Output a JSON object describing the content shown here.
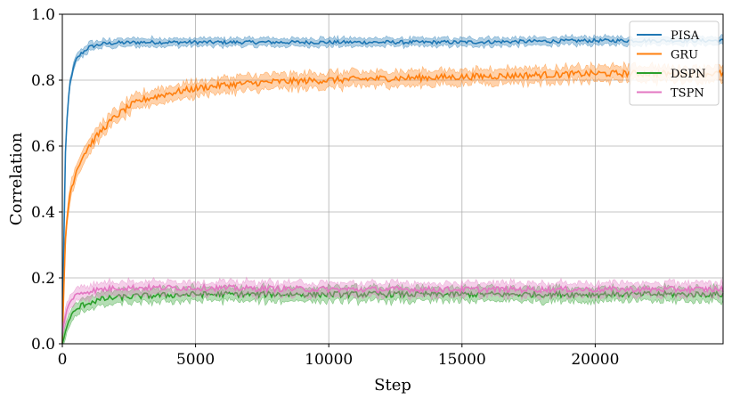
{
  "chart_data": {
    "type": "line",
    "title": "",
    "xlabel": "Step",
    "ylabel": "Correlation",
    "xlim": [
      0,
      24800
    ],
    "ylim": [
      0.0,
      1.0
    ],
    "xticks": [
      0,
      5000,
      10000,
      15000,
      20000
    ],
    "xtick_labels": [
      "0",
      "5000",
      "10000",
      "15000",
      "20000"
    ],
    "yticks": [
      0.0,
      0.2,
      0.4,
      0.6,
      0.8,
      1.0
    ],
    "ytick_labels": [
      "0.0",
      "0.2",
      "0.4",
      "0.6",
      "0.8",
      "1.0"
    ],
    "grid": true,
    "legend_position": "top-right",
    "series": [
      {
        "name": "PISA",
        "color": "#1f77b4",
        "band": 0.012,
        "x": [
          0,
          100,
          200,
          300,
          500,
          700,
          1000,
          1500,
          2000,
          3000,
          5000,
          8000,
          10000,
          15000,
          20000,
          24800
        ],
        "y": [
          0.0,
          0.55,
          0.72,
          0.8,
          0.86,
          0.88,
          0.9,
          0.91,
          0.913,
          0.915,
          0.915,
          0.915,
          0.915,
          0.915,
          0.92,
          0.92
        ]
      },
      {
        "name": "GRU",
        "color": "#ff7f0e",
        "band": 0.022,
        "x": [
          0,
          100,
          200,
          300,
          500,
          700,
          1000,
          1500,
          2000,
          2500,
          3000,
          4000,
          5000,
          6000,
          8000,
          10000,
          12000,
          15000,
          20000,
          24800
        ],
        "y": [
          0.0,
          0.3,
          0.4,
          0.46,
          0.52,
          0.56,
          0.6,
          0.65,
          0.69,
          0.72,
          0.74,
          0.76,
          0.775,
          0.785,
          0.795,
          0.8,
          0.805,
          0.81,
          0.82,
          0.82
        ]
      },
      {
        "name": "DSPN",
        "color": "#2ca02c",
        "band": 0.02,
        "x": [
          0,
          100,
          200,
          300,
          500,
          700,
          1000,
          1500,
          2000,
          3000,
          5000,
          10000,
          15000,
          20000,
          24800
        ],
        "y": [
          0.0,
          0.03,
          0.06,
          0.08,
          0.1,
          0.115,
          0.125,
          0.135,
          0.14,
          0.145,
          0.15,
          0.15,
          0.15,
          0.15,
          0.15
        ]
      },
      {
        "name": "TSPN",
        "color": "#e377c2",
        "band": 0.02,
        "x": [
          0,
          100,
          200,
          300,
          500,
          700,
          1000,
          1500,
          2000,
          3000,
          5000,
          10000,
          15000,
          20000,
          24800
        ],
        "y": [
          0.03,
          0.08,
          0.11,
          0.13,
          0.145,
          0.155,
          0.16,
          0.165,
          0.17,
          0.17,
          0.17,
          0.165,
          0.165,
          0.165,
          0.165
        ]
      }
    ]
  }
}
